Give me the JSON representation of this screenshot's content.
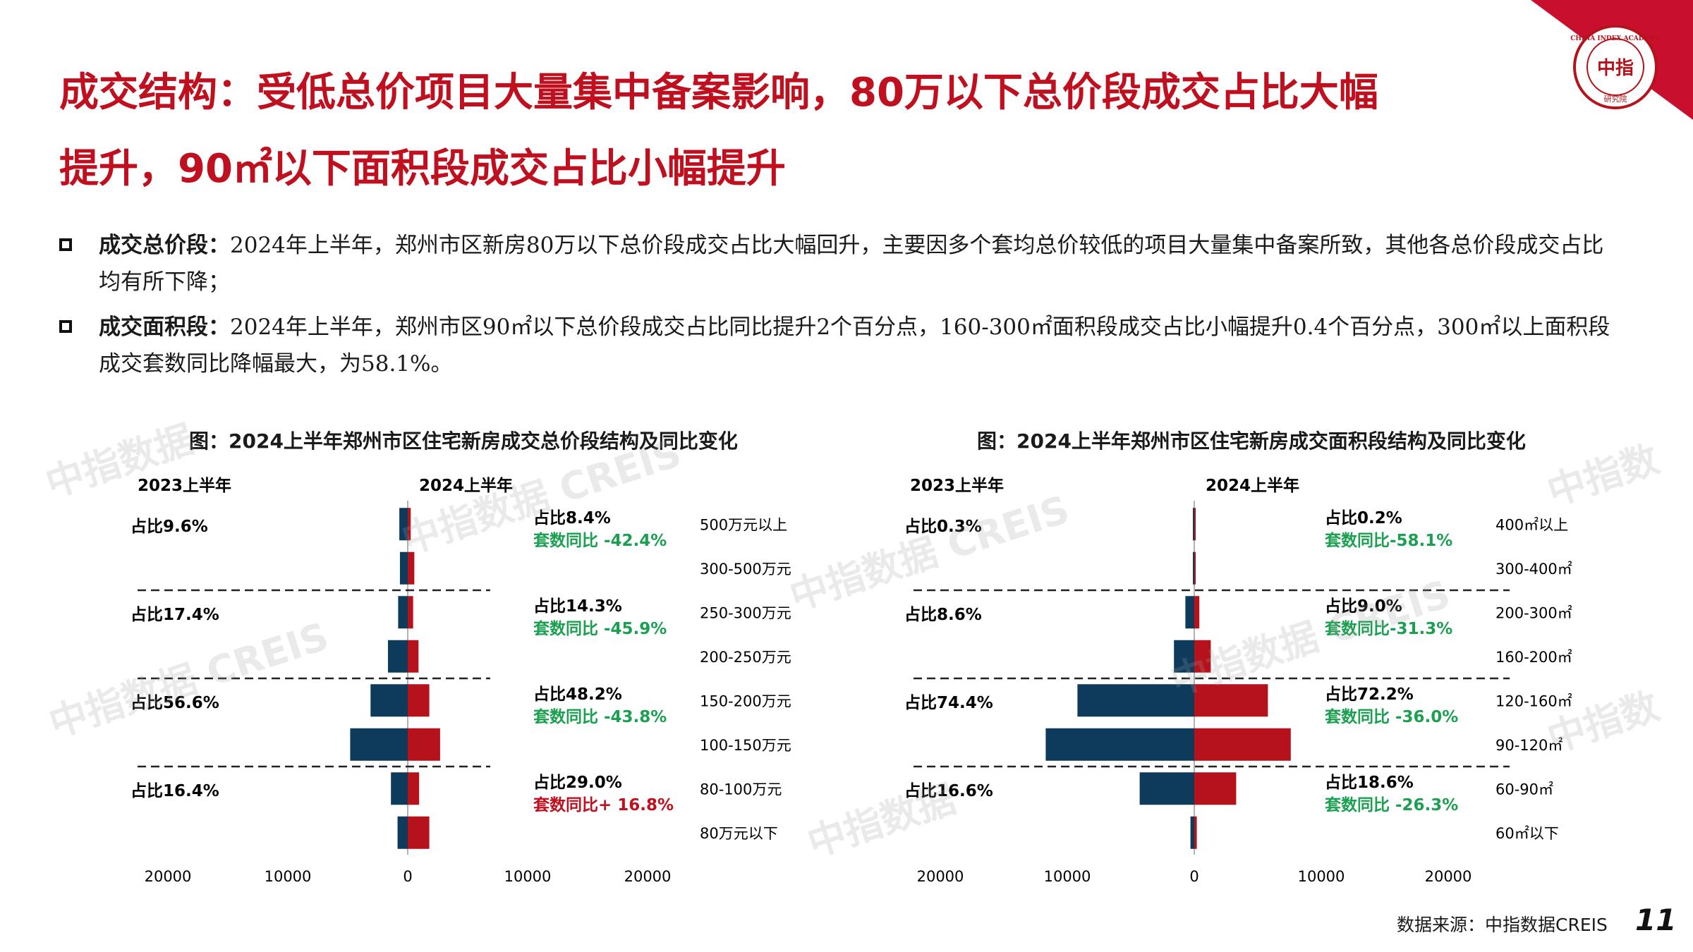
{
  "header": {
    "title_line1": "成交结构：受低总价项目大量集中备案影响，80万以下总价段成交占比大幅",
    "title_line2": "提升，90㎡以下面积段成交占比小幅提升",
    "logo_text": "CHINA INDEX ACADEMY",
    "logo_center": "中指",
    "logo_bottom": "研究院"
  },
  "bullets": [
    {
      "label": "成交总价段：",
      "text": "2024年上半年，郑州市区新房80万以下总价段成交占比大幅回升，主要因多个套均总价较低的项目大量集中备案所致，其他各总价段成交占比均有所下降；"
    },
    {
      "label": "成交面积段：",
      "text": "2024年上半年，郑州市区90㎡以下总价段成交占比同比提升2个百分点，160-300㎡面积段成交占比小幅提升0.4个百分点，300㎡以上面积段成交套数同比降幅最大，为58.1%。"
    }
  ],
  "watermark": {
    "text1": "中指数据",
    "text2": "中指数据 CREIS",
    "text3": "中指数"
  },
  "colors": {
    "title_red": "#c0101f",
    "series_2023": "#0e3a5c",
    "series_2024": "#b5121b",
    "up_red": "#c0101f",
    "down_green": "#1aa050"
  },
  "footer": {
    "source": "数据来源：中指数据CREIS",
    "page_number": "11"
  },
  "chart_data": [
    {
      "type": "bar",
      "orientation": "horizontal-butterfly",
      "title": "图：2024上半年郑州市区住宅新房成交总价段结构及同比变化",
      "left_header": "2023上半年",
      "right_header": "2024上半年",
      "categories": [
        "500万元以上",
        "300-500万元",
        "250-300万元",
        "200-250万元",
        "150-200万元",
        "100-150万元",
        "80-100万元",
        "80万元以下"
      ],
      "series": [
        {
          "name": "2023上半年",
          "side": "left",
          "color": "#0e3a5c",
          "values": [
            700,
            650,
            800,
            1650,
            3100,
            4800,
            1400,
            850
          ]
        },
        {
          "name": "2024上半年",
          "side": "right",
          "color": "#b5121b",
          "values": [
            250,
            550,
            450,
            900,
            1800,
            2700,
            950,
            1800
          ]
        }
      ],
      "axis_ticks": [
        "20000",
        "10000",
        "0",
        "10000",
        "20000"
      ],
      "xlim": [
        -20000,
        20000
      ],
      "groups": [
        {
          "share_2023": "占比9.6%",
          "share_2024": "占比8.4%",
          "yoy": "套数同比 -42.4%",
          "direction": "down"
        },
        {
          "share_2023": "占比17.4%",
          "share_2024": "占比14.3%",
          "yoy": "套数同比 -45.9%",
          "direction": "down"
        },
        {
          "share_2023": "占比56.6%",
          "share_2024": "占比48.2%",
          "yoy": "套数同比 -43.8%",
          "direction": "down"
        },
        {
          "share_2023": "占比16.4%",
          "share_2024": "占比29.0%",
          "yoy": "套数同比+ 16.8%",
          "direction": "up"
        }
      ]
    },
    {
      "type": "bar",
      "orientation": "horizontal-butterfly",
      "title": "图：2024上半年郑州市区住宅新房成交面积段结构及同比变化",
      "left_header": "2023上半年",
      "right_header": "2024上半年",
      "categories": [
        "400㎡以上",
        "300-400㎡",
        "200-300㎡",
        "160-200㎡",
        "120-160㎡",
        "90-120㎡",
        "60-90㎡",
        "60㎡以下"
      ],
      "series": [
        {
          "name": "2023上半年",
          "side": "left",
          "color": "#0e3a5c",
          "values": [
            60,
            60,
            700,
            1600,
            9200,
            11700,
            4300,
            300
          ]
        },
        {
          "name": "2024上半年",
          "side": "right",
          "color": "#b5121b",
          "values": [
            30,
            20,
            400,
            1300,
            5800,
            7600,
            3300,
            200
          ]
        }
      ],
      "axis_ticks": [
        "20000",
        "10000",
        "0",
        "10000",
        "20000"
      ],
      "xlim": [
        -20000,
        20000
      ],
      "groups": [
        {
          "share_2023": "占比0.3%",
          "share_2024": "占比0.2%",
          "yoy": "套数同比-58.1%",
          "direction": "down"
        },
        {
          "share_2023": "占比8.6%",
          "share_2024": "占比9.0%",
          "yoy": "套数同比-31.3%",
          "direction": "down"
        },
        {
          "share_2023": "占比74.4%",
          "share_2024": "占比72.2%",
          "yoy": "套数同比 -36.0%",
          "direction": "down"
        },
        {
          "share_2023": "占比16.6%",
          "share_2024": "占比18.6%",
          "yoy": "套数同比 -26.3%",
          "direction": "down"
        }
      ]
    }
  ]
}
